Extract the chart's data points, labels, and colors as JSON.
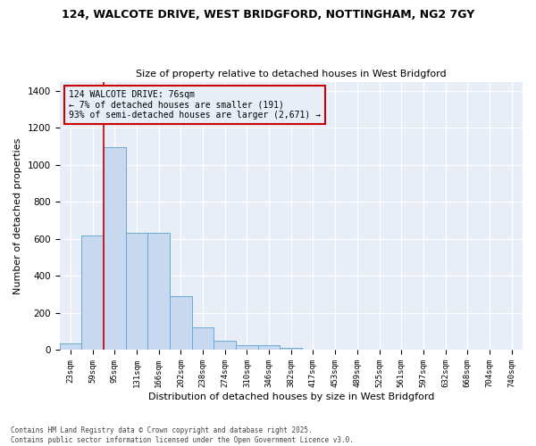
{
  "title_line1": "124, WALCOTE DRIVE, WEST BRIDGFORD, NOTTINGHAM, NG2 7GY",
  "title_line2": "Size of property relative to detached houses in West Bridgford",
  "xlabel": "Distribution of detached houses by size in West Bridgford",
  "ylabel": "Number of detached properties",
  "footnote": "Contains HM Land Registry data © Crown copyright and database right 2025.\nContains public sector information licensed under the Open Government Licence v3.0.",
  "bar_color": "#c8d9ef",
  "bar_edge_color": "#6aaad4",
  "annotation_box_color": "#cc0000",
  "vline_color": "#cc0000",
  "bg_color": "#ffffff",
  "plot_bg_color": "#e8eef8",
  "grid_color": "#ffffff",
  "categories": [
    "23sqm",
    "59sqm",
    "95sqm",
    "131sqm",
    "166sqm",
    "202sqm",
    "238sqm",
    "274sqm",
    "310sqm",
    "346sqm",
    "382sqm",
    "417sqm",
    "453sqm",
    "489sqm",
    "525sqm",
    "561sqm",
    "597sqm",
    "632sqm",
    "668sqm",
    "704sqm",
    "740sqm"
  ],
  "values": [
    35,
    620,
    1095,
    635,
    635,
    290,
    125,
    50,
    25,
    25,
    10,
    0,
    0,
    0,
    0,
    0,
    0,
    0,
    0,
    0,
    0
  ],
  "vline_x_index": 1,
  "annotation_text": "124 WALCOTE DRIVE: 76sqm\n← 7% of detached houses are smaller (191)\n93% of semi-detached houses are larger (2,671) →",
  "ylim": [
    0,
    1450
  ],
  "yticks": [
    0,
    200,
    400,
    600,
    800,
    1000,
    1200,
    1400
  ]
}
